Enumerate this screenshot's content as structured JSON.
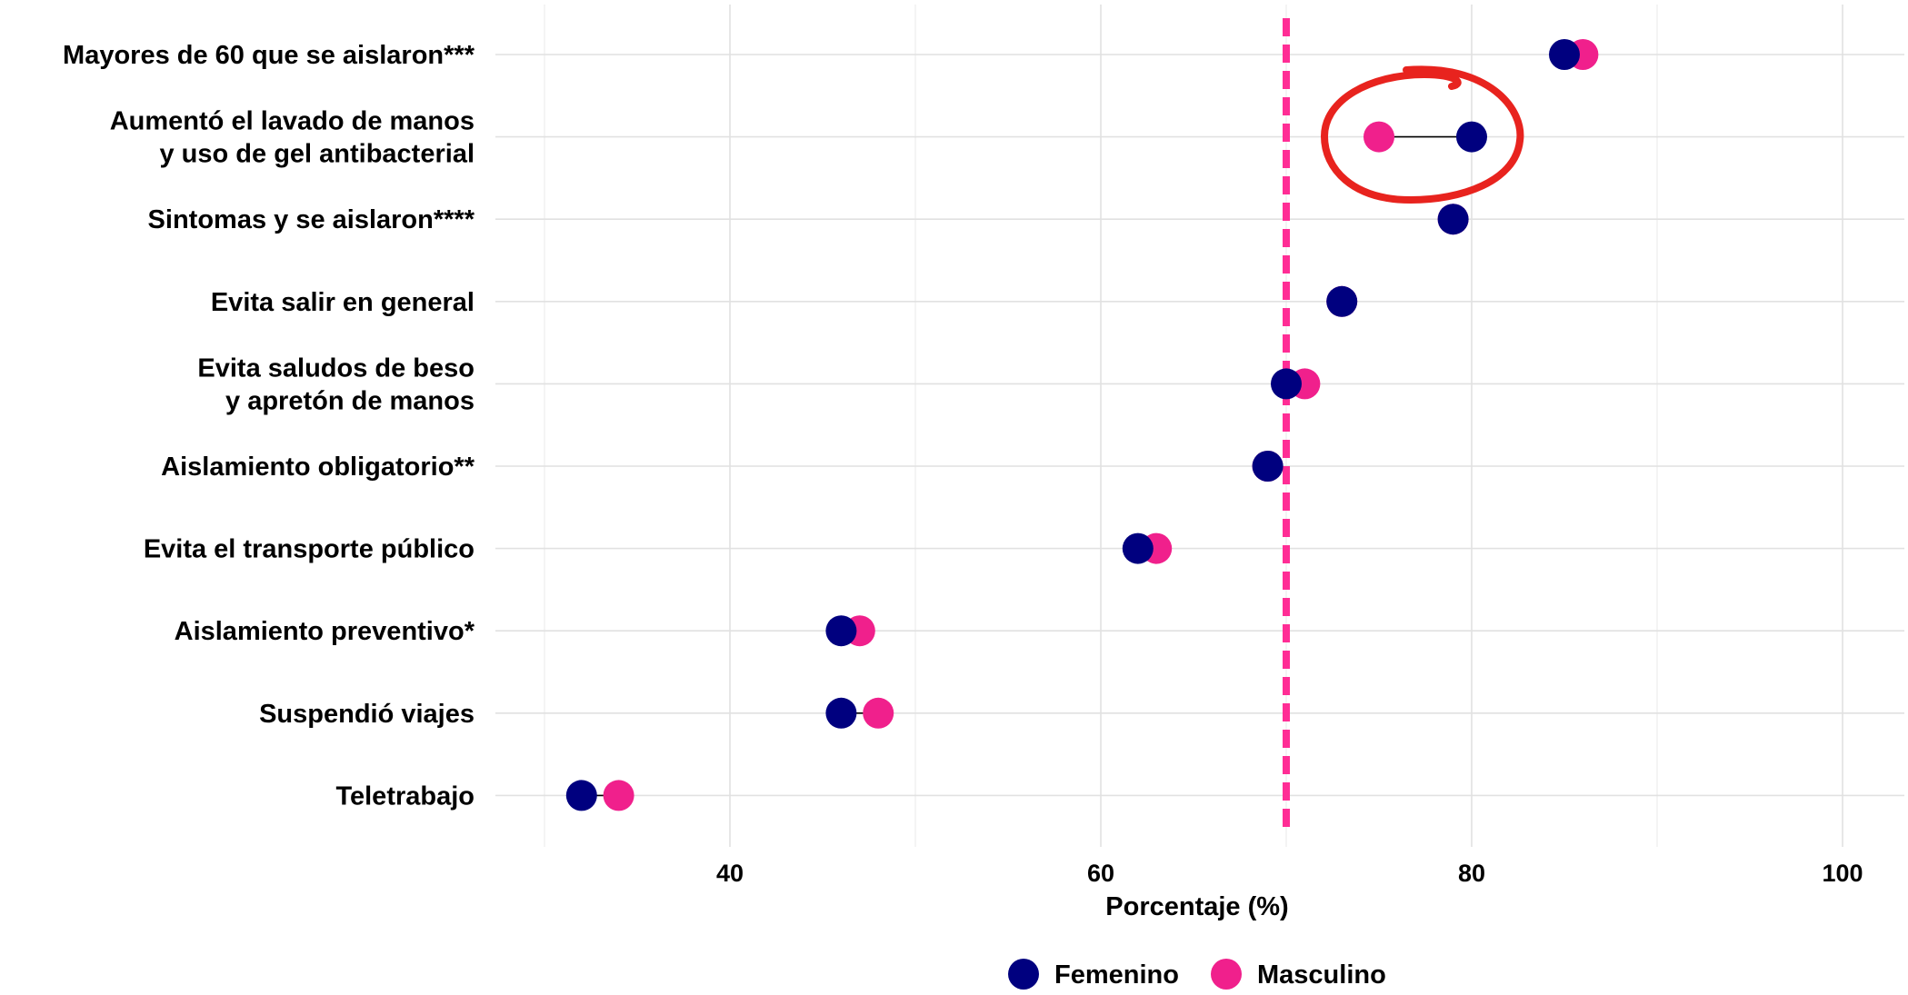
{
  "chart_data": {
    "type": "scatter",
    "subtype": "dumbbell",
    "xlabel": "Porcentaje (%)",
    "ylabel": "",
    "xlim": [
      27,
      101
    ],
    "xticks": [
      40,
      60,
      80,
      100
    ],
    "grid": true,
    "legend_position": "bottom",
    "reference_line": {
      "x": 70,
      "style": "dashed",
      "color": "#ff2d95"
    },
    "categories": [
      "Mayores de 60 que se aislaron***",
      "Aumentó el lavado de manos\ny uso de gel antibacterial",
      "Sintomas y se aislaron****",
      "Evita salir en general",
      "Evita saludos de beso\ny apretón de manos",
      "Aislamiento obligatorio**",
      "Evita el transporte público",
      "Aislamiento preventivo*",
      "Suspendió viajes",
      "Teletrabajo"
    ],
    "series": [
      {
        "name": "Femenino",
        "color": "#00007f",
        "values": [
          85,
          80,
          79,
          73,
          70,
          69,
          62,
          46,
          46,
          32
        ]
      },
      {
        "name": "Masculino",
        "color": "#f0208c",
        "values": [
          86,
          75,
          79,
          73,
          71,
          69,
          63,
          47,
          48,
          34
        ]
      }
    ],
    "annotations": [
      {
        "type": "hand-drawn circle",
        "target": "Aumentó el lavado de manos\ny uso de gel antibacterial",
        "color": "#e8231e"
      }
    ]
  }
}
